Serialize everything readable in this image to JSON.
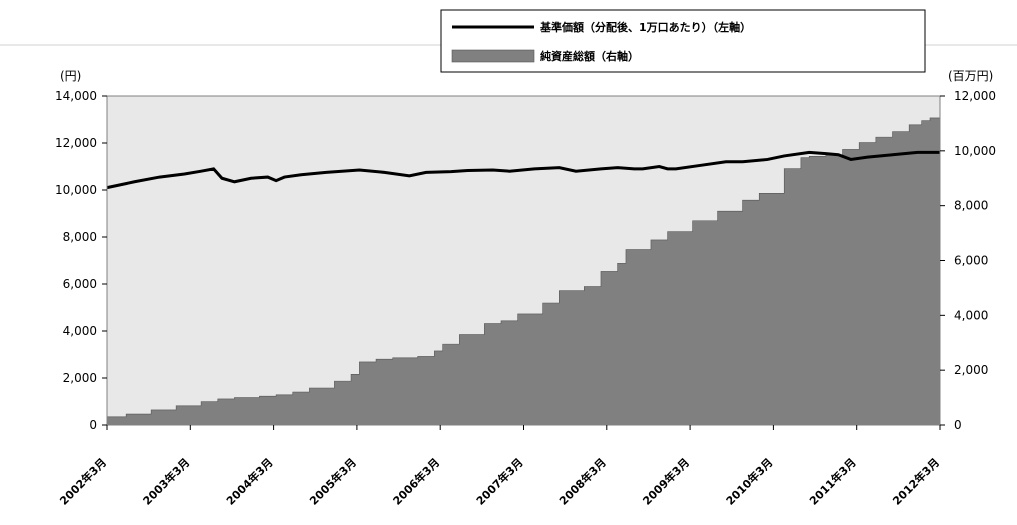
{
  "chart_data": {
    "type": "area",
    "y_left": {
      "unit": "(円)",
      "range": [
        0,
        14000
      ],
      "ticks": [
        "0",
        "2,000",
        "4,000",
        "6,000",
        "8,000",
        "10,000",
        "12,000",
        "14,000"
      ]
    },
    "y_right": {
      "unit": "(百万円)",
      "range": [
        0,
        12000
      ],
      "ticks": [
        "0",
        "2,000",
        "4,000",
        "6,000",
        "8,000",
        "10,000",
        "12,000"
      ]
    },
    "x_ticks": [
      "2002年3月",
      "2003年3月",
      "2004年3月",
      "2005年3月",
      "2006年3月",
      "2007年3月",
      "2008年3月",
      "2009年3月",
      "2010年3月",
      "2011年3月",
      "2012年3月"
    ],
    "x_range": [
      2002.17,
      2012.17
    ],
    "legend_placement": "top-right",
    "series": [
      {
        "name": "基準価額（分配後、1万口あたり）（左軸）",
        "type": "line",
        "axis": "left",
        "color": "#000000",
        "x": [
          2002.17,
          2002.5,
          2002.8,
          2003.1,
          2003.3,
          2003.45,
          2003.55,
          2003.7,
          2003.9,
          2004.1,
          2004.2,
          2004.3,
          2004.5,
          2004.8,
          2005.2,
          2005.5,
          2005.8,
          2006.0,
          2006.3,
          2006.5,
          2006.8,
          2007.0,
          2007.3,
          2007.6,
          2007.8,
          2008.1,
          2008.3,
          2008.5,
          2008.6,
          2008.8,
          2008.9,
          2009.0,
          2009.3,
          2009.6,
          2009.8,
          2010.1,
          2010.3,
          2010.6,
          2010.8,
          2010.95,
          2011.1,
          2011.3,
          2011.6,
          2011.9,
          2012.17
        ],
        "values": [
          10100,
          10350,
          10550,
          10680,
          10800,
          10900,
          10500,
          10350,
          10500,
          10550,
          10400,
          10550,
          10650,
          10750,
          10850,
          10750,
          10600,
          10750,
          10780,
          10830,
          10850,
          10800,
          10900,
          10950,
          10800,
          10900,
          10950,
          10900,
          10900,
          11000,
          10900,
          10900,
          11050,
          11200,
          11200,
          11300,
          11450,
          11600,
          11550,
          11500,
          11300,
          11400,
          11500,
          11600,
          11600
        ]
      },
      {
        "name": "純資産総額（右軸）",
        "type": "area",
        "axis": "right",
        "color": "#808080",
        "x": [
          2002.17,
          2002.4,
          2002.7,
          2003.0,
          2003.3,
          2003.5,
          2003.7,
          2004.0,
          2004.2,
          2004.4,
          2004.6,
          2004.9,
          2005.1,
          2005.2,
          2005.4,
          2005.6,
          2005.9,
          2006.1,
          2006.2,
          2006.4,
          2006.7,
          2006.9,
          2007.1,
          2007.4,
          2007.6,
          2007.9,
          2008.1,
          2008.3,
          2008.4,
          2008.7,
          2008.9,
          2009.2,
          2009.5,
          2009.8,
          2010.0,
          2010.3,
          2010.5,
          2010.6,
          2010.8,
          2011.0,
          2011.2,
          2011.4,
          2011.6,
          2011.8,
          2011.95,
          2012.05,
          2012.17
        ],
        "values": [
          300,
          400,
          550,
          700,
          850,
          950,
          1000,
          1050,
          1100,
          1200,
          1350,
          1600,
          1850,
          2300,
          2400,
          2450,
          2500,
          2700,
          2950,
          3300,
          3700,
          3800,
          4050,
          4450,
          4900,
          5050,
          5600,
          5900,
          6400,
          6750,
          7050,
          7450,
          7800,
          8200,
          8450,
          9350,
          9750,
          9800,
          9850,
          10050,
          10300,
          10500,
          10700,
          10950,
          11100,
          11200,
          11100
        ]
      }
    ]
  }
}
